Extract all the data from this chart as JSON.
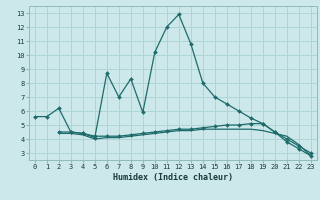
{
  "xlabel": "Humidex (Indice chaleur)",
  "bg_color": "#cce8ea",
  "grid_color": "#aed4d6",
  "line_color": "#1e6b6b",
  "xlim": [
    -0.5,
    23.5
  ],
  "ylim": [
    2.5,
    13.5
  ],
  "xticks": [
    0,
    1,
    2,
    3,
    4,
    5,
    6,
    7,
    8,
    9,
    10,
    11,
    12,
    13,
    14,
    15,
    16,
    17,
    18,
    19,
    20,
    21,
    22,
    23
  ],
  "yticks": [
    3,
    4,
    5,
    6,
    7,
    8,
    9,
    10,
    11,
    12,
    13
  ],
  "series1_x": [
    0,
    1,
    2,
    3,
    4,
    5,
    6,
    7,
    8,
    9,
    10,
    11,
    12,
    13,
    14,
    15,
    16,
    17,
    18,
    19,
    20,
    21,
    22,
    23
  ],
  "series1_y": [
    5.6,
    5.6,
    6.2,
    4.5,
    4.4,
    4.1,
    8.7,
    7.0,
    8.3,
    5.9,
    10.2,
    12.0,
    12.9,
    10.8,
    8.0,
    7.0,
    6.5,
    6.0,
    5.5,
    5.1,
    4.5,
    3.8,
    3.3,
    2.8
  ],
  "series2_x": [
    2,
    3,
    4,
    5,
    6,
    7,
    8,
    9,
    10,
    11,
    12,
    13,
    14,
    15,
    16,
    17,
    18,
    19,
    20,
    21,
    22,
    23
  ],
  "series2_y": [
    4.5,
    4.5,
    4.4,
    4.2,
    4.2,
    4.2,
    4.3,
    4.4,
    4.5,
    4.6,
    4.7,
    4.7,
    4.8,
    4.9,
    5.0,
    5.0,
    5.1,
    5.1,
    4.5,
    4.0,
    3.5,
    3.0
  ],
  "series3_x": [
    2,
    3,
    4,
    5,
    6,
    7,
    8,
    9,
    10,
    11,
    12,
    13,
    14,
    15,
    16,
    17,
    18,
    19,
    20,
    21,
    22,
    23
  ],
  "series3_y": [
    4.4,
    4.4,
    4.3,
    4.0,
    4.1,
    4.1,
    4.2,
    4.3,
    4.4,
    4.5,
    4.6,
    4.6,
    4.7,
    4.7,
    4.7,
    4.7,
    4.7,
    4.6,
    4.4,
    4.2,
    3.6,
    2.8
  ]
}
